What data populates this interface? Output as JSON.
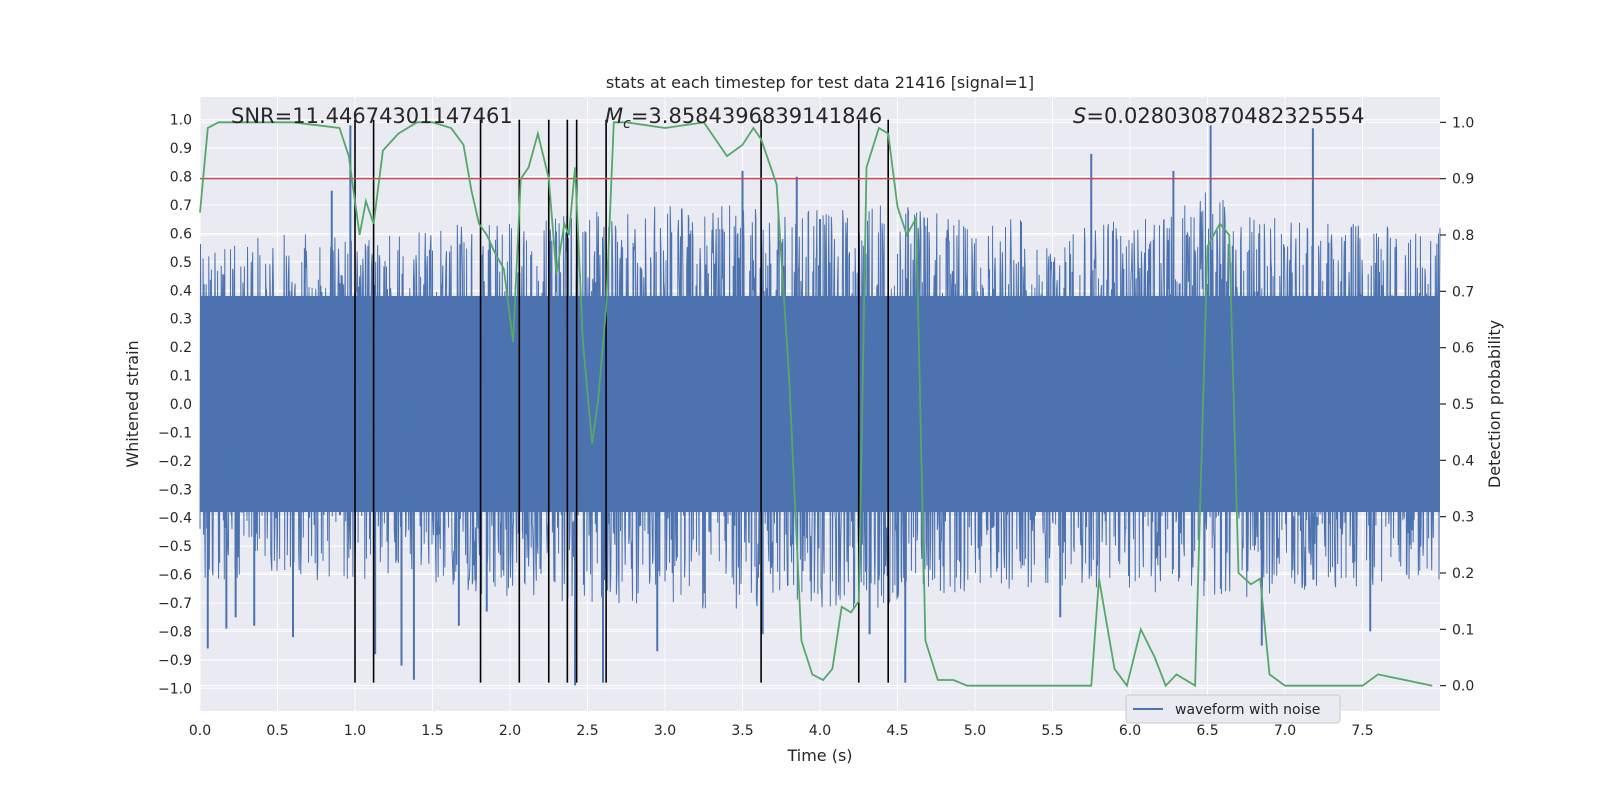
{
  "chart_data": {
    "type": "line",
    "title": "stats at each timestep for test data 21416 [signal=1]",
    "xlabel": "Time (s)",
    "ylabel_left": "Whitened strain",
    "ylabel_right": "Detection probability",
    "xlim": [
      0,
      8
    ],
    "ylim_left": [
      -1.08,
      1.08
    ],
    "ylim_right": [
      -0.045,
      1.045
    ],
    "x_ticks": [
      0.0,
      0.5,
      1.0,
      1.5,
      2.0,
      2.5,
      3.0,
      3.5,
      4.0,
      4.5,
      5.0,
      5.5,
      6.0,
      6.5,
      7.0,
      7.5
    ],
    "x_tick_labels": [
      "0.0",
      "0.5",
      "1.0",
      "1.5",
      "2.0",
      "2.5",
      "3.0",
      "3.5",
      "4.0",
      "4.5",
      "5.0",
      "5.5",
      "6.0",
      "6.5",
      "7.0",
      "7.5"
    ],
    "y_left_ticks": [
      1.0,
      0.9,
      0.8,
      0.7,
      0.6,
      0.5,
      0.4,
      0.3,
      0.2,
      0.1,
      0.0,
      -0.1,
      -0.2,
      -0.3,
      -0.4,
      -0.5,
      -0.6,
      -0.7,
      -0.8,
      -0.9,
      -1.0
    ],
    "y_left_tick_labels": [
      "1.0",
      "0.9",
      "0.8",
      "0.7",
      "0.6",
      "0.5",
      "0.4",
      "0.3",
      "0.2",
      "0.1",
      "0.0",
      "−0.1",
      "−0.2",
      "−0.3",
      "−0.4",
      "−0.5",
      "−0.6",
      "−0.7",
      "−0.8",
      "−0.9",
      "−1.0"
    ],
    "y_right_ticks": [
      1.0,
      0.9,
      0.8,
      0.7,
      0.6,
      0.5,
      0.4,
      0.3,
      0.2,
      0.1,
      0.0
    ],
    "y_right_tick_labels": [
      "1.0",
      "0.9",
      "0.8",
      "0.7",
      "0.6",
      "0.5",
      "0.4",
      "0.3",
      "0.2",
      "0.1",
      "0.0"
    ],
    "annotations": {
      "snr": "SNR=11.44674301147461",
      "mc_symbol": "M",
      "mc_subscript": "c",
      "mc_value": "=3.8584396839141846",
      "s_symbol": "S",
      "s_value": "=0.028030870482325554"
    },
    "threshold": {
      "value": 0.9,
      "axis": "right",
      "color": "#c44e52"
    },
    "vertical_lines": {
      "x": [
        1.0,
        1.12,
        1.81,
        2.06,
        2.25,
        2.37,
        2.43,
        2.62,
        3.62,
        4.25,
        4.44
      ],
      "ymin": -0.98,
      "ymax": 1.0,
      "color": "#000000"
    },
    "legend": {
      "label": "waveform with noise",
      "placement": "lower-right"
    },
    "colors": {
      "waveform": "#4c72b0",
      "probability": "#55a868",
      "axes_bg": "#eaeaf2",
      "grid": "#ffffff"
    },
    "series": [
      {
        "name": "waveform with noise",
        "axis": "left",
        "style": "dense noise, envelope approx",
        "envelope_x": [
          0.0,
          1.0,
          2.0,
          3.0,
          4.0,
          4.5,
          5.0,
          6.0,
          6.5,
          7.0,
          8.0
        ],
        "envelope_upper": [
          0.6,
          0.6,
          0.65,
          0.7,
          0.7,
          0.7,
          0.65,
          0.65,
          0.75,
          0.65,
          0.62
        ],
        "envelope_lower": [
          -0.62,
          -0.62,
          -0.68,
          -0.72,
          -0.72,
          -0.72,
          -0.65,
          -0.65,
          -0.7,
          -0.66,
          -0.62
        ],
        "spikes_x": [
          0.05,
          0.17,
          0.23,
          0.35,
          0.6,
          0.85,
          0.97,
          1.13,
          1.3,
          1.38,
          1.67,
          1.85,
          2.42,
          2.6,
          2.95,
          3.5,
          3.63,
          3.85,
          4.32,
          4.55,
          5.55,
          5.75,
          6.28,
          6.52,
          6.85,
          7.18,
          7.55
        ],
        "spikes_y": [
          -0.86,
          -0.79,
          -0.75,
          -0.78,
          -0.82,
          0.75,
          0.98,
          -0.88,
          -0.92,
          -0.97,
          -0.78,
          -0.73,
          -0.99,
          -0.98,
          -0.87,
          0.82,
          -0.81,
          0.8,
          -0.81,
          -0.98,
          -0.75,
          0.88,
          0.82,
          0.98,
          -0.85,
          0.97,
          -0.8
        ]
      },
      {
        "name": "detection probability",
        "axis": "right",
        "x": [
          0.0,
          0.05,
          0.12,
          0.3,
          0.6,
          0.9,
          0.96,
          1.03,
          1.07,
          1.12,
          1.18,
          1.28,
          1.4,
          1.5,
          1.62,
          1.7,
          1.75,
          1.8,
          1.85,
          1.9,
          1.96,
          2.02,
          2.07,
          2.12,
          2.18,
          2.25,
          2.3,
          2.35,
          2.38,
          2.42,
          2.47,
          2.53,
          2.57,
          2.62,
          2.67,
          2.75,
          3.0,
          3.25,
          3.4,
          3.5,
          3.57,
          3.62,
          3.72,
          3.8,
          3.88,
          3.95,
          4.02,
          4.08,
          4.14,
          4.2,
          4.25,
          4.3,
          4.38,
          4.44,
          4.5,
          4.56,
          4.62,
          4.68,
          4.76,
          4.8,
          4.86,
          4.95,
          5.0,
          5.5,
          5.75,
          5.8,
          5.9,
          5.98,
          6.07,
          6.16,
          6.23,
          6.3,
          6.42,
          6.5,
          6.58,
          6.64,
          6.7,
          6.78,
          6.84,
          6.9,
          7.0,
          7.5,
          7.6,
          7.95
        ],
        "y": [
          0.84,
          0.99,
          1.0,
          1.0,
          1.0,
          0.99,
          0.94,
          0.8,
          0.86,
          0.82,
          0.95,
          0.98,
          1.0,
          1.0,
          0.99,
          0.96,
          0.88,
          0.82,
          0.8,
          0.77,
          0.74,
          0.61,
          0.9,
          0.92,
          0.98,
          0.9,
          0.73,
          0.82,
          0.8,
          0.92,
          0.61,
          0.43,
          0.51,
          0.67,
          1.0,
          1.0,
          0.99,
          1.0,
          0.94,
          0.96,
          0.99,
          0.97,
          0.89,
          0.55,
          0.08,
          0.02,
          0.01,
          0.03,
          0.14,
          0.13,
          0.15,
          0.92,
          0.99,
          0.98,
          0.85,
          0.8,
          0.83,
          0.08,
          0.01,
          0.01,
          0.01,
          0.0,
          0.0,
          0.0,
          0.0,
          0.19,
          0.03,
          0.0,
          0.1,
          0.05,
          0.0,
          0.02,
          0.0,
          0.78,
          0.82,
          0.8,
          0.2,
          0.18,
          0.19,
          0.02,
          0.0,
          0.0,
          0.02,
          0.0
        ]
      }
    ]
  }
}
